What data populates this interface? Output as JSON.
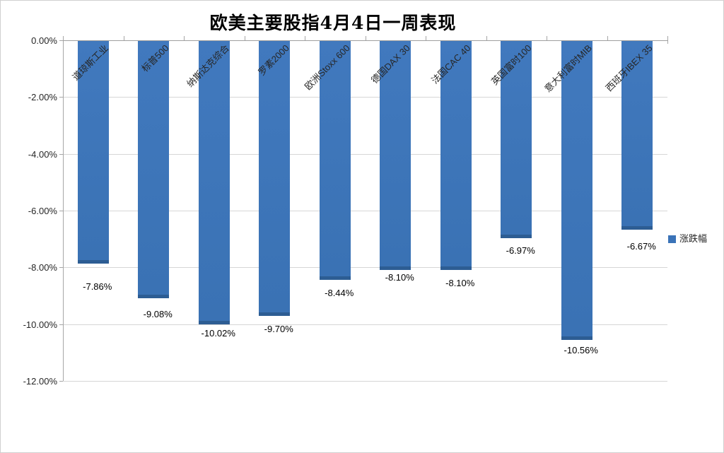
{
  "chart_data": {
    "type": "bar",
    "title": "欧美主要股指4月4日一周表现",
    "categories": [
      "道琼斯工业",
      "标普500",
      "纳斯达克综合",
      "罗素2000",
      "欧洲Stoxx 600",
      "德国DAX 30",
      "法国CAC 40",
      "英国富时100",
      "意大利富时MIB",
      "西班牙IBEX 35"
    ],
    "series": [
      {
        "name": "涨跌幅",
        "values": [
          -7.86,
          -9.08,
          -10.02,
          -9.7,
          -8.44,
          -8.1,
          -8.1,
          -6.97,
          -10.56,
          -6.67
        ]
      }
    ],
    "data_labels": [
      "-7.86%",
      "-9.08%",
      "-10.02%",
      "-9.70%",
      "-8.44%",
      "-8.10%",
      "-8.10%",
      "-6.97%",
      "-10.56%",
      "-6.67%"
    ],
    "xlabel": "",
    "ylabel": "",
    "y_axis": {
      "min": -12,
      "max": 0,
      "step": 2,
      "ticks": [
        "0.00%",
        "-2.00%",
        "-4.00%",
        "-6.00%",
        "-8.00%",
        "-10.00%",
        "-12.00%"
      ]
    },
    "legend": {
      "label": "涨跌幅",
      "position": "right"
    },
    "grid": true,
    "bar_color": "#3a73b8",
    "bar_edge_color": "#2d5d93"
  }
}
